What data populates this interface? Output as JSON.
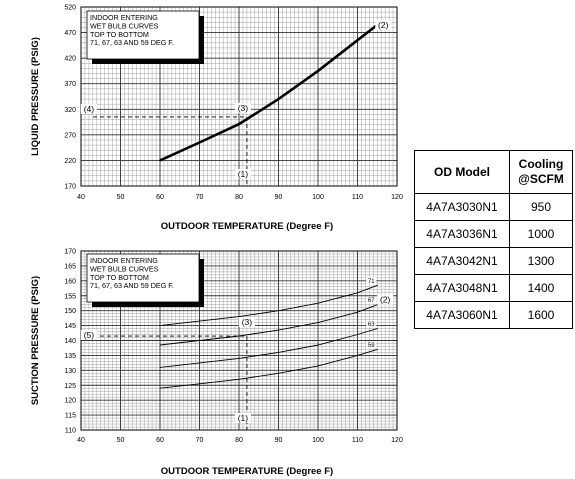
{
  "chart_data": [
    {
      "type": "line",
      "xlabel": "OUTDOOR TEMPERATURE (Degree F)",
      "ylabel": "LIQUID PRESSURE (PSIG)",
      "xlim": [
        40,
        120
      ],
      "ylim": [
        170,
        520
      ],
      "x_ticks": [
        40,
        50,
        60,
        70,
        80,
        90,
        100,
        110,
        120
      ],
      "y_ticks": [
        170,
        220,
        270,
        320,
        370,
        420,
        470,
        520
      ],
      "grid": true,
      "note_lines": [
        "INDOOR ENTERING",
        "WET BULB CURVES",
        "TOP TO BOTTOM",
        "71, 67, 63 AND 59 DEG F."
      ],
      "series": [
        {
          "x": [
            60,
            70,
            80,
            90,
            100,
            110,
            115
          ],
          "y": [
            220,
            255,
            291,
            340,
            395,
            455,
            485
          ]
        }
      ],
      "annotations": [
        {
          "label": "(1)",
          "x": 82,
          "y": 170
        },
        {
          "label": "(2)",
          "x": 115,
          "y": 485
        },
        {
          "label": "(3)",
          "x": 82,
          "y": 305
        },
        {
          "label": "(4)",
          "x": 42,
          "y": 305
        }
      ],
      "guide": {
        "x": 82,
        "y": 305
      }
    },
    {
      "type": "line",
      "xlabel": "OUTDOOR TEMPERATURE (Degree F)",
      "ylabel": "SUCTION PRESSURE (PSIG)",
      "xlim": [
        40,
        120
      ],
      "ylim": [
        110,
        170
      ],
      "x_ticks": [
        40,
        50,
        60,
        70,
        80,
        90,
        100,
        110,
        120
      ],
      "y_ticks": [
        110,
        115,
        120,
        125,
        130,
        135,
        140,
        145,
        150,
        155,
        160,
        165,
        170
      ],
      "grid": true,
      "note_lines": [
        "INDOOR ENTERING",
        "WET BULB CURVES",
        "TOP TO BOTTOM",
        "71, 67, 63 AND 59 DEG F."
      ],
      "series": [
        {
          "name": "71",
          "x": [
            60,
            70,
            80,
            90,
            100,
            110,
            115
          ],
          "y": [
            145,
            146.5,
            148,
            150,
            152.5,
            156,
            158.5
          ]
        },
        {
          "name": "67",
          "x": [
            60,
            70,
            80,
            90,
            100,
            110,
            115
          ],
          "y": [
            138.5,
            140,
            141.5,
            143.5,
            146,
            149.5,
            152
          ]
        },
        {
          "name": "63",
          "x": [
            60,
            70,
            80,
            90,
            100,
            110,
            115
          ],
          "y": [
            131,
            132.5,
            134,
            136,
            138.5,
            142,
            144
          ]
        },
        {
          "name": "59",
          "x": [
            60,
            70,
            80,
            90,
            100,
            110,
            115
          ],
          "y": [
            124,
            125.5,
            127,
            129,
            131.5,
            135,
            137
          ]
        }
      ],
      "annotations": [
        {
          "label": "(1)",
          "x": 82,
          "y": 110
        },
        {
          "label": "(2)",
          "x": 117,
          "y": 154
        },
        {
          "label": "(3)",
          "x": 82,
          "y": 141.5
        },
        {
          "label": "(5)",
          "x": 42,
          "y": 141.5
        }
      ],
      "guide": {
        "x": 82,
        "y": 141.5
      }
    }
  ],
  "table": {
    "headers": [
      "OD Model",
      "Cooling @SCFM"
    ],
    "header_lines": [
      [
        "OD Model"
      ],
      [
        "Cooling",
        "@SCFM"
      ]
    ],
    "rows": [
      [
        "4A7A3030N1",
        "950"
      ],
      [
        "4A7A3036N1",
        "1000"
      ],
      [
        "4A7A3042N1",
        "1300"
      ],
      [
        "4A7A3048N1",
        "1400"
      ],
      [
        "4A7A3060N1",
        "1600"
      ]
    ]
  }
}
